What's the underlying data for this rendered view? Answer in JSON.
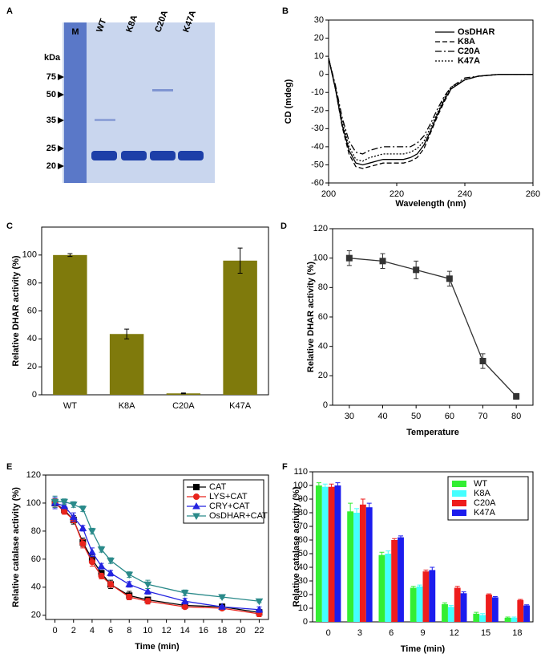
{
  "chart_data": [
    {
      "type": "gel",
      "panel": "A",
      "lanes": [
        "M",
        "WT",
        "K8A",
        "C20A",
        "K47A"
      ],
      "unit": "kDa",
      "markers": [
        75,
        50,
        35,
        25,
        20
      ]
    },
    {
      "type": "line",
      "panel": "B",
      "xlabel": "Wavelength (nm)",
      "ylabel": "CD (mdeg)",
      "x": [
        200,
        202,
        204,
        206,
        208,
        210,
        212,
        214,
        216,
        218,
        220,
        222,
        224,
        226,
        228,
        230,
        232,
        234,
        236,
        240,
        244,
        250,
        260
      ],
      "xlim": [
        200,
        260
      ],
      "xticks": [
        200,
        220,
        240,
        260
      ],
      "ylim": [
        -60,
        30
      ],
      "yticks": [
        30,
        20,
        10,
        0,
        -10,
        -20,
        -30,
        -40,
        -50,
        -60
      ],
      "legend": "upper right",
      "legend_frame": false,
      "series": [
        {
          "name": "OsDHAR",
          "color": "#000000",
          "dash": "none",
          "values": [
            9,
            -8,
            -28,
            -42,
            -49,
            -50,
            -49,
            -48,
            -47,
            -47,
            -47,
            -47,
            -46,
            -44,
            -39,
            -31,
            -22,
            -14,
            -8,
            -3,
            -1,
            0,
            0
          ]
        },
        {
          "name": "K8A",
          "color": "#000000",
          "dash": "6,3",
          "values": [
            9,
            -8,
            -29,
            -44,
            -51,
            -52,
            -51,
            -50,
            -49,
            -49,
            -49,
            -49,
            -48,
            -46,
            -41,
            -32,
            -23,
            -15,
            -8,
            -3,
            -1,
            0,
            0
          ]
        },
        {
          "name": "C20A",
          "color": "#000000",
          "dash": "8,3,2,3",
          "values": [
            9,
            -6,
            -24,
            -37,
            -43,
            -44,
            -42,
            -41,
            -40,
            -40,
            -40,
            -40,
            -40,
            -38,
            -34,
            -27,
            -19,
            -12,
            -7,
            -2,
            -1,
            0,
            0
          ]
        },
        {
          "name": "K47A",
          "color": "#000000",
          "dash": "2,2",
          "values": [
            9,
            -7,
            -26,
            -40,
            -47,
            -48,
            -46,
            -45,
            -44,
            -44,
            -44,
            -44,
            -43,
            -41,
            -37,
            -29,
            -21,
            -13,
            -7,
            -3,
            -1,
            0,
            0
          ]
        }
      ]
    },
    {
      "type": "bar",
      "panel": "C",
      "ylabel": "Relative DHAR activity (%)",
      "categories": [
        "WT",
        "K8A",
        "C20A",
        "K47A"
      ],
      "values": [
        100,
        43.5,
        1,
        96
      ],
      "errors": [
        1,
        3.5,
        0.3,
        9
      ],
      "color": "#7f7a0c",
      "ylim": [
        0,
        120
      ],
      "yticks": [
        0,
        20,
        40,
        60,
        80,
        100
      ]
    },
    {
      "type": "line",
      "panel": "D",
      "xlabel": "Temperature",
      "ylabel": "Relative DHAR activity (%)",
      "x": [
        30,
        40,
        50,
        60,
        70,
        80
      ],
      "values": [
        100,
        98,
        92,
        86,
        30,
        6
      ],
      "errors": [
        5,
        5,
        6,
        5,
        5,
        2
      ],
      "color": "#333333",
      "marker": "square",
      "xlim": [
        25,
        85
      ],
      "xticks": [
        30,
        40,
        50,
        60,
        70,
        80
      ],
      "ylim": [
        0,
        120
      ],
      "yticks": [
        0,
        20,
        40,
        60,
        80,
        100,
        120
      ]
    },
    {
      "type": "line",
      "panel": "E",
      "xlabel": "Time (min)",
      "ylabel": "Relative catalase activity (%)",
      "x": [
        0,
        1,
        2,
        3,
        4,
        5,
        6,
        8,
        10,
        14,
        18,
        22
      ],
      "xlim": [
        -1,
        23
      ],
      "xticks": [
        0,
        2,
        4,
        6,
        8,
        10,
        12,
        14,
        16,
        18,
        20,
        22
      ],
      "ylim": [
        17,
        120
      ],
      "yticks": [
        20,
        40,
        60,
        80,
        100,
        120
      ],
      "legend": "upper right",
      "legend_frame": true,
      "series": [
        {
          "name": "CAT",
          "color": "#000000",
          "marker": "square",
          "values": [
            100,
            95,
            88,
            72,
            60,
            50,
            42,
            34,
            31,
            27,
            26,
            22
          ],
          "errors": [
            3,
            2,
            3,
            3,
            3,
            2,
            3,
            3,
            2,
            2,
            2,
            2
          ]
        },
        {
          "name": "LYS+CAT",
          "color": "#e8241d",
          "marker": "circle",
          "values": [
            100,
            94,
            88,
            71,
            58,
            48,
            42,
            33,
            30,
            26,
            25,
            21
          ],
          "errors": [
            3,
            2,
            2,
            3,
            3,
            2,
            2,
            2,
            2,
            1,
            1,
            2
          ]
        },
        {
          "name": "CRY+CAT",
          "color": "#2323e0",
          "marker": "triangle",
          "values": [
            100,
            98,
            90,
            82,
            65,
            55,
            50,
            42,
            37,
            30,
            26,
            24
          ],
          "errors": [
            4,
            2,
            3,
            2,
            3,
            2,
            2,
            2,
            2,
            2,
            1,
            2
          ]
        },
        {
          "name": "OsDHAR+CAT",
          "color": "#2a8a8a",
          "marker": "triangle-down",
          "values": [
            101,
            101,
            99,
            96,
            80,
            67,
            59,
            49,
            42,
            36,
            33,
            30
          ],
          "errors": [
            4,
            2,
            2,
            2,
            2,
            2,
            2,
            2,
            3,
            2,
            1,
            1
          ]
        }
      ]
    },
    {
      "type": "bar",
      "panel": "F",
      "xlabel": "Time (min)",
      "ylabel": "Relative catalase activity (%)",
      "categories": [
        "0",
        "3",
        "6",
        "9",
        "12",
        "15",
        "18"
      ],
      "ylim": [
        0,
        110
      ],
      "yticks": [
        0,
        10,
        20,
        30,
        40,
        50,
        60,
        70,
        80,
        90,
        100,
        110
      ],
      "legend": "upper right",
      "legend_frame": true,
      "series": [
        {
          "name": "WT",
          "color": "#33ee33",
          "values": [
            100,
            81,
            49,
            25,
            13,
            6,
            3
          ],
          "errors": [
            2,
            6,
            2,
            1,
            1,
            1,
            0.5
          ]
        },
        {
          "name": "K8A",
          "color": "#44ffff",
          "values": [
            99,
            80,
            50,
            26,
            11,
            5,
            3
          ],
          "errors": [
            2,
            3,
            2,
            1,
            1,
            1,
            0.5
          ]
        },
        {
          "name": "C20A",
          "color": "#ee1c1c",
          "values": [
            99,
            86,
            60,
            37,
            25,
            20,
            16
          ],
          "errors": [
            2,
            4,
            1,
            1,
            1,
            0.5,
            0.5
          ]
        },
        {
          "name": "K47A",
          "color": "#1c1cee",
          "values": [
            100,
            84,
            62,
            38,
            21,
            18,
            12
          ],
          "errors": [
            2,
            3,
            1,
            2,
            1,
            0.5,
            0.5
          ]
        }
      ]
    }
  ]
}
